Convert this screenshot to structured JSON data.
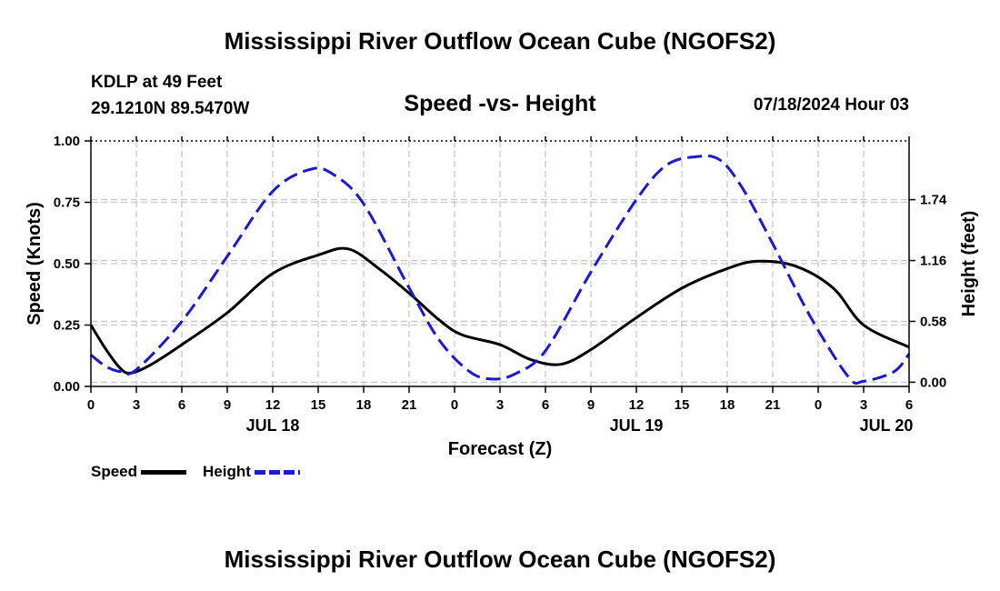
{
  "header": {
    "title": "Mississippi River Outflow Ocean Cube (NGOFS2)",
    "station_line1": "KDLP at 49 Feet",
    "station_line2": "29.1210N  89.5470W",
    "subtitle": "Speed -vs- Height",
    "timestamp": "07/18/2024 Hour 03"
  },
  "footer": {
    "title": "Mississippi River Outflow Ocean Cube (NGOFS2)"
  },
  "legend": {
    "speed_label": "Speed",
    "height_label": "Height"
  },
  "colors": {
    "speed": "#000000",
    "height": "#1a1acc",
    "grid": "#c8c8c8"
  },
  "chart_data": {
    "type": "line",
    "title": "Speed -vs- Height",
    "xlabel": "Forecast (Z)",
    "ylabel": "Speed (Knots)",
    "ylabel_right": "Height (feet)",
    "xlim": [
      0,
      54
    ],
    "ylim": [
      0,
      1.0
    ],
    "ylim_right": [
      -0.04,
      2.3
    ],
    "x_ticks": [
      0,
      3,
      6,
      9,
      12,
      15,
      18,
      21,
      24,
      27,
      30,
      33,
      36,
      39,
      42,
      45,
      48,
      51,
      54
    ],
    "x_tick_labels": [
      "0",
      "3",
      "6",
      "9",
      "12",
      "15",
      "18",
      "21",
      "0",
      "3",
      "6",
      "9",
      "12",
      "15",
      "18",
      "21",
      "0",
      "3",
      "6"
    ],
    "date_labels": [
      {
        "x": 12,
        "label": "JUL 18"
      },
      {
        "x": 36,
        "label": "JUL 19"
      },
      {
        "x": 52.5,
        "label": "JUL 20"
      }
    ],
    "y_ticks": [
      0,
      0.25,
      0.5,
      0.75,
      1.0
    ],
    "y_tick_labels": [
      "0.00",
      "0.25",
      "0.50",
      "0.75",
      "1.00"
    ],
    "y_right_ticks": [
      0.0,
      0.58,
      1.16,
      1.74
    ],
    "y_right_tick_labels": [
      "0.00",
      "0.58",
      "1.16",
      "1.74"
    ],
    "grid": true,
    "legend_position": "bottom-left",
    "series": [
      {
        "name": "Speed",
        "axis": "left",
        "x": [
          0,
          1,
          2,
          2.7,
          4,
          6,
          9,
          12,
          15,
          17,
          19,
          21,
          23,
          24.5,
          27,
          29,
          31,
          33,
          36,
          39,
          42,
          44,
          46.5,
          49,
          51,
          54
        ],
        "values": [
          0.25,
          0.15,
          0.07,
          0.055,
          0.09,
          0.17,
          0.3,
          0.46,
          0.535,
          0.56,
          0.48,
          0.38,
          0.27,
          0.21,
          0.17,
          0.11,
          0.09,
          0.15,
          0.28,
          0.4,
          0.48,
          0.51,
          0.49,
          0.4,
          0.25,
          0.16
        ]
      },
      {
        "name": "Height",
        "axis": "right",
        "x": [
          0,
          1,
          2,
          3,
          6,
          9,
          12,
          14.5,
          16,
          18,
          21,
          23,
          25,
          26.5,
          28,
          30,
          33,
          36,
          38,
          40,
          41.5,
          43,
          45,
          47.5,
          50,
          51,
          53,
          54
        ],
        "values": [
          0.26,
          0.15,
          0.1,
          0.12,
          0.58,
          1.2,
          1.82,
          2.03,
          1.98,
          1.7,
          0.9,
          0.4,
          0.1,
          0.03,
          0.08,
          0.3,
          1.05,
          1.74,
          2.07,
          2.15,
          2.12,
          1.85,
          1.32,
          0.62,
          0.05,
          0.01,
          0.1,
          0.27
        ]
      }
    ]
  }
}
